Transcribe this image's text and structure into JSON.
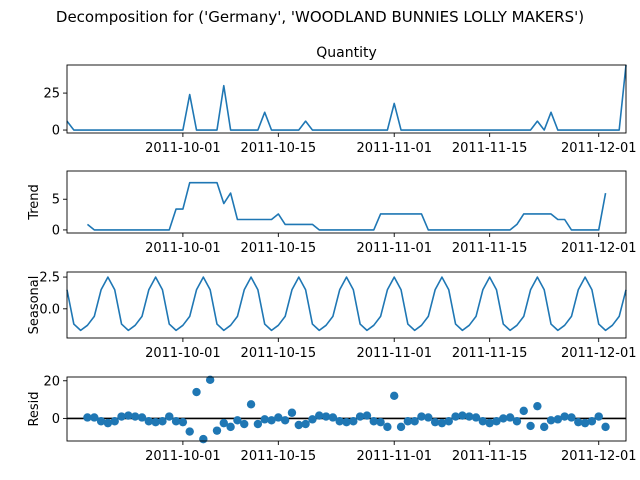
{
  "figure": {
    "title": "Decomposition for ('Germany', 'WOODLAND BUNNIES LOLLY MAKERS')",
    "line_color": "#1f77b4",
    "zero_line_color": "#000000"
  },
  "chart_data": [
    {
      "type": "line",
      "name": "observed",
      "title": "Quantity",
      "ylabel": "",
      "xlim": [
        "2011-09-14",
        "2011-12-05"
      ],
      "ylim": [
        -2,
        44
      ],
      "yticks": [
        0,
        25
      ],
      "xticks": [
        "2011-10-01",
        "2011-10-15",
        "2011-11-01",
        "2011-11-15",
        "2011-12-01"
      ],
      "x": [
        "2011-09-14",
        "2011-09-15",
        "2011-09-26",
        "2011-09-29",
        "2011-09-30",
        "2011-10-01",
        "2011-10-02",
        "2011-10-03",
        "2011-10-06",
        "2011-10-07",
        "2011-10-08",
        "2011-10-09",
        "2011-10-12",
        "2011-10-13",
        "2011-10-14",
        "2011-10-17",
        "2011-10-18",
        "2011-10-19",
        "2011-10-20",
        "2011-10-31",
        "2011-11-01",
        "2011-11-02",
        "2011-11-21",
        "2011-11-22",
        "2011-11-23",
        "2011-11-24",
        "2011-11-25",
        "2011-12-04",
        "2011-12-05"
      ],
      "y": [
        6,
        0,
        0,
        0,
        0,
        0,
        24,
        0,
        0,
        30,
        0,
        0,
        0,
        12,
        0,
        0,
        0,
        6,
        0,
        0,
        18,
        0,
        0,
        6,
        0,
        12,
        0,
        0,
        44
      ]
    },
    {
      "type": "line",
      "name": "trend",
      "title": "",
      "ylabel": "Trend",
      "xlim": [
        "2011-09-14",
        "2011-12-05"
      ],
      "ylim": [
        -0.5,
        9.6
      ],
      "yticks": [
        0,
        5
      ],
      "xticks": [
        "2011-10-01",
        "2011-10-15",
        "2011-11-01",
        "2011-11-15",
        "2011-12-01"
      ],
      "x": [
        "2011-09-17",
        "2011-09-18",
        "2011-09-29",
        "2011-09-30",
        "2011-10-01",
        "2011-10-02",
        "2011-10-06",
        "2011-10-07",
        "2011-10-08",
        "2011-10-09",
        "2011-10-10",
        "2011-10-11",
        "2011-10-14",
        "2011-10-15",
        "2011-10-16",
        "2011-10-19",
        "2011-10-20",
        "2011-10-21",
        "2011-10-22",
        "2011-10-29",
        "2011-10-30",
        "2011-11-05",
        "2011-11-06",
        "2011-11-18",
        "2011-11-19",
        "2011-11-20",
        "2011-11-24",
        "2011-11-25",
        "2011-11-26",
        "2011-11-27",
        "2011-11-28",
        "2011-12-01",
        "2011-12-02"
      ],
      "y": [
        0.9,
        0,
        0,
        3.4,
        3.4,
        7.7,
        7.7,
        4.3,
        6,
        1.7,
        1.7,
        1.7,
        1.7,
        2.6,
        0.9,
        0.9,
        0.9,
        0,
        0,
        0,
        2.6,
        2.6,
        0,
        0,
        0.9,
        2.6,
        2.6,
        1.7,
        1.7,
        0,
        0,
        0,
        6
      ]
    },
    {
      "type": "line",
      "name": "seasonal",
      "title": "",
      "ylabel": "Seasonal",
      "xlim": [
        "2011-09-14",
        "2011-12-05"
      ],
      "ylim": [
        -2.3,
        2.9
      ],
      "yticks": [
        0.0,
        2.5
      ],
      "xticks": [
        "2011-10-01",
        "2011-10-15",
        "2011-11-01",
        "2011-11-15",
        "2011-12-01"
      ],
      "period_values": [
        1.5,
        -1.2,
        -1.7,
        -1.3,
        -0.6,
        1.5,
        2.5
      ],
      "x_start": "2011-09-14",
      "x_end": "2011-12-05"
    },
    {
      "type": "scatter",
      "name": "resid",
      "title": "",
      "ylabel": "Resid",
      "xlim": [
        "2011-09-14",
        "2011-12-05"
      ],
      "ylim": [
        -12,
        22
      ],
      "yticks": [
        0,
        20
      ],
      "xticks": [
        "2011-10-01",
        "2011-10-15",
        "2011-11-01",
        "2011-11-15",
        "2011-12-01"
      ],
      "zero_line": 0,
      "x_start": "2011-09-17",
      "y": [
        0.5,
        0.5,
        -1.5,
        -2.5,
        -1.5,
        1,
        1.5,
        1,
        0.5,
        -1.5,
        -2,
        -1.5,
        1,
        -1.5,
        -2,
        -7,
        14,
        -11,
        20.5,
        -6.5,
        -2.5,
        -4.5,
        -1,
        -3,
        7.5,
        -3,
        -0.5,
        -1,
        0.5,
        -1,
        3,
        -3.5,
        -3,
        -0.5,
        1.5,
        1,
        0.5,
        -1.5,
        -2,
        -1.5,
        1,
        1.5,
        -1.5,
        -2,
        -4.5,
        12,
        -4.5,
        -1.5,
        -1.5,
        1,
        0.5,
        -2,
        -2.5,
        -1.5,
        1,
        1.5,
        1,
        0.5,
        -1.5,
        -2.5,
        -1.5,
        0,
        0.5,
        -1.5,
        4,
        -4,
        6.5,
        -4.5,
        -1,
        -0.5,
        1,
        0.5,
        -2,
        -2.5,
        -1.5,
        1,
        -4.5
      ]
    }
  ]
}
